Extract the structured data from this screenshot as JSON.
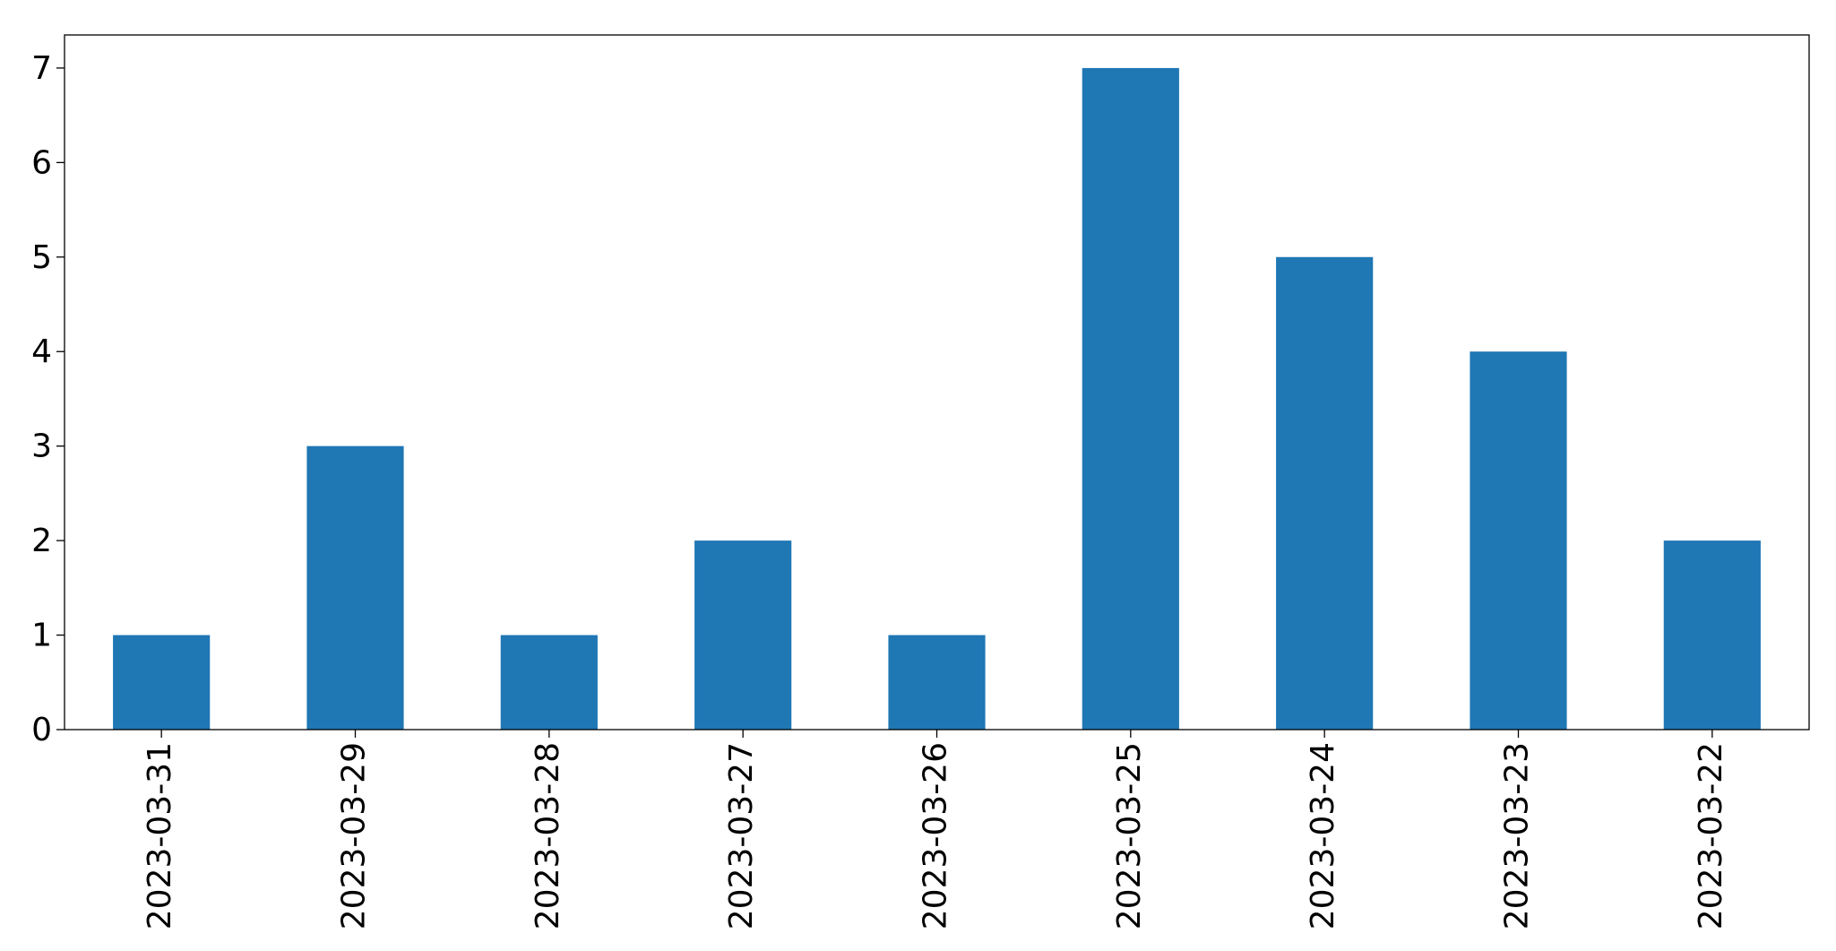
{
  "chart_data": {
    "type": "bar",
    "categories": [
      "2023-03-31",
      "2023-03-29",
      "2023-03-28",
      "2023-03-27",
      "2023-03-26",
      "2023-03-25",
      "2023-03-24",
      "2023-03-23",
      "2023-03-22"
    ],
    "values": [
      1,
      3,
      1,
      2,
      1,
      7,
      5,
      4,
      2
    ],
    "color": "#1f77b4",
    "ylim": [
      0,
      7.35
    ],
    "yticks": [
      0,
      1,
      2,
      3,
      4,
      5,
      6,
      7
    ],
    "grid": false
  }
}
